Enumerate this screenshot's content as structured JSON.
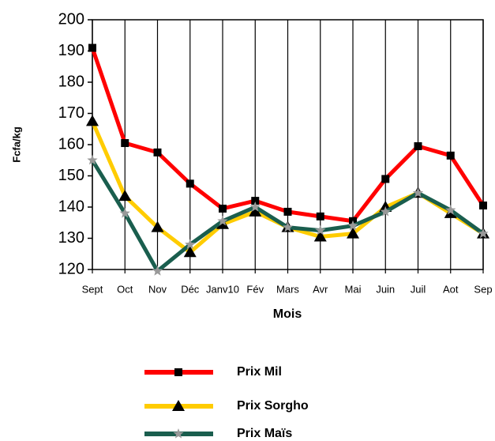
{
  "chart_data": {
    "type": "line",
    "x_label": "Mois",
    "y_label": "Fcfa/kg",
    "categories": [
      "Sept",
      "Oct",
      "Nov",
      "Déc",
      "Janv10",
      "Fév",
      "Mars",
      "Avr",
      "Mai",
      "Juin",
      "Juil",
      "Aot",
      "Sep"
    ],
    "series": [
      {
        "name": "Prix Mil",
        "color": "#ff0000",
        "marker": "square",
        "values": [
          191,
          160.5,
          157.5,
          147.5,
          139.5,
          142,
          138.5,
          137,
          135.5,
          149,
          159.5,
          156.5,
          140.5
        ]
      },
      {
        "name": "Prix Sorgho",
        "color": "#ffcc00",
        "marker": "triangle",
        "values": [
          167.5,
          143.5,
          133.5,
          125.5,
          134.5,
          138.5,
          133.5,
          130.5,
          131.5,
          140,
          144.5,
          138,
          131.5
        ]
      },
      {
        "name": "Prix Maïs",
        "color": "#1a5e4e",
        "marker": "star",
        "values": [
          155,
          138,
          119.5,
          128,
          135.5,
          140,
          133.5,
          132.5,
          134,
          138.5,
          144.5,
          139,
          131.5
        ]
      }
    ],
    "ylim": [
      120,
      200
    ],
    "yticks": [
      120,
      130,
      140,
      150,
      160,
      170,
      180,
      190,
      200
    ],
    "grid": "x",
    "legend": "bottom"
  }
}
